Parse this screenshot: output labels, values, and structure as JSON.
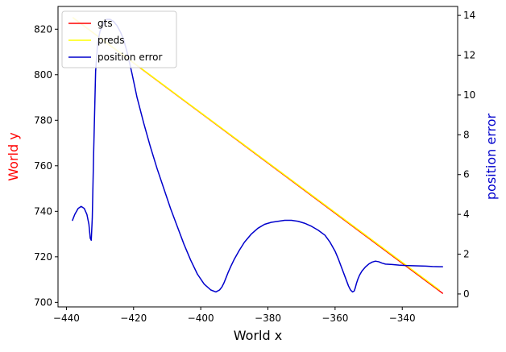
{
  "chart_data": {
    "type": "line",
    "xlabel": "World x",
    "ylabel_left": "World y",
    "ylabel_right": "position error",
    "xlim": [
      -442.5,
      -323.5
    ],
    "ylim_left": [
      698,
      830
    ],
    "ylim_right": [
      -0.65,
      14.45
    ],
    "xticks": [
      -440,
      -420,
      -400,
      -380,
      -360,
      -340
    ],
    "yticks_left": [
      700,
      720,
      740,
      760,
      780,
      800,
      820
    ],
    "yticks_right": [
      0,
      2,
      4,
      6,
      8,
      10,
      12,
      14
    ],
    "grid": false,
    "legend_position": "upper-left",
    "colors": {
      "gts": "#ff0000",
      "preds": "#ffff00",
      "error": "#0000cc",
      "left_label": "#ff0000",
      "right_label": "#0000cc"
    },
    "series": [
      {
        "name": "gts",
        "axis": "left",
        "x": [
          -438,
          -328
        ],
        "y": [
          825,
          704
        ]
      },
      {
        "name": "preds",
        "axis": "left",
        "x": [
          -438,
          -329
        ],
        "y": [
          825,
          705.5
        ]
      },
      {
        "name": "position error",
        "axis": "right",
        "x": [
          -438.2,
          -437.5,
          -436.5,
          -435.6,
          -434.7,
          -433.9,
          -433.3,
          -432.9,
          -432.6,
          -432.3,
          -431.9,
          -431.3,
          -430.7,
          -430.0,
          -429.0,
          -428.0,
          -427.0,
          -426.0,
          -425.0,
          -424.0,
          -423.0,
          -422.0,
          -420.5,
          -419.0,
          -417.0,
          -415.0,
          -413.0,
          -411.0,
          -409.0,
          -407.0,
          -405.0,
          -403.0,
          -401.0,
          -399.0,
          -397.0,
          -395.5,
          -394.4,
          -393.7,
          -393.1,
          -392.5,
          -391.8,
          -391.0,
          -390.0,
          -388.5,
          -387.0,
          -385.0,
          -383.0,
          -381.0,
          -379.0,
          -377.0,
          -375.0,
          -373.0,
          -371.0,
          -369.0,
          -367.0,
          -365.0,
          -363.0,
          -361.5,
          -360.0,
          -359.0,
          -358.0,
          -357.0,
          -356.0,
          -355.4,
          -354.8,
          -354.3,
          -354.0,
          -353.6,
          -353.2,
          -352.7,
          -352.0,
          -351.0,
          -350.0,
          -349.0,
          -348.0,
          -347.0,
          -346.0,
          -345.0,
          -343.0,
          -341.0,
          -339.0,
          -337.0,
          -335.0,
          -333.0,
          -331.0,
          -329.0,
          -328.0
        ],
        "y": [
          3.7,
          4.0,
          4.3,
          4.4,
          4.3,
          4.0,
          3.5,
          2.8,
          2.7,
          3.8,
          7.0,
          11.2,
          12.6,
          13.2,
          13.6,
          13.8,
          13.8,
          13.7,
          13.5,
          13.2,
          12.8,
          12.2,
          11.1,
          9.9,
          8.6,
          7.4,
          6.3,
          5.3,
          4.3,
          3.4,
          2.5,
          1.7,
          1.0,
          0.5,
          0.2,
          0.1,
          0.2,
          0.35,
          0.55,
          0.8,
          1.1,
          1.4,
          1.75,
          2.2,
          2.6,
          3.0,
          3.3,
          3.5,
          3.6,
          3.65,
          3.7,
          3.7,
          3.65,
          3.55,
          3.4,
          3.2,
          2.95,
          2.6,
          2.15,
          1.75,
          1.3,
          0.85,
          0.4,
          0.2,
          0.1,
          0.15,
          0.3,
          0.55,
          0.75,
          0.95,
          1.15,
          1.35,
          1.5,
          1.6,
          1.65,
          1.62,
          1.55,
          1.5,
          1.48,
          1.45,
          1.43,
          1.42,
          1.41,
          1.4,
          1.38,
          1.37,
          1.37
        ]
      }
    ]
  }
}
